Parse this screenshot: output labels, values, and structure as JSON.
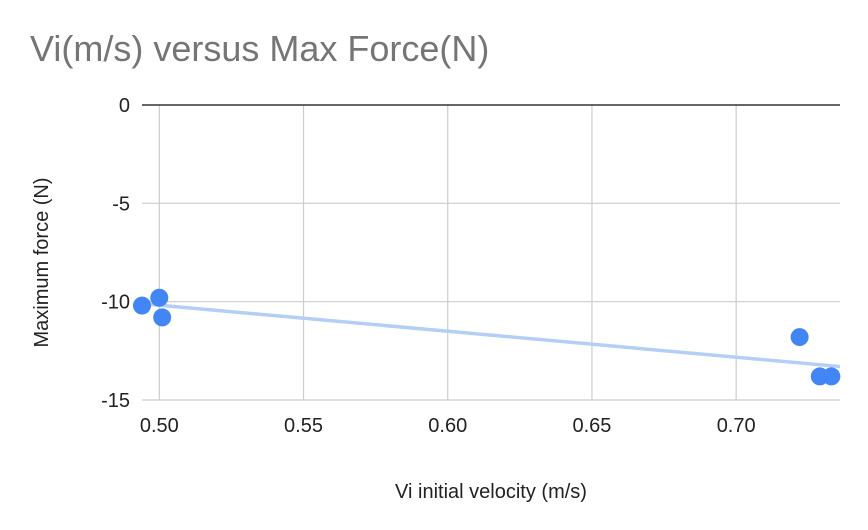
{
  "chart_data": {
    "type": "scatter",
    "title": "Vi(m/s) versus Max Force(N)",
    "xlabel": "Vi initial velocity (m/s)",
    "ylabel": "Maximum force (N)",
    "xlim": [
      0.494,
      0.736
    ],
    "ylim": [
      -15,
      0
    ],
    "x_ticks": [
      0.5,
      0.55,
      0.6,
      0.65,
      0.7
    ],
    "x_tick_labels": [
      "0.50",
      "0.55",
      "0.60",
      "0.65",
      "0.70"
    ],
    "y_ticks": [
      0,
      -5,
      -10,
      -15
    ],
    "y_tick_labels": [
      "0",
      "-5",
      "-10",
      "-15"
    ],
    "grid": true,
    "series": [
      {
        "color": "#4285f4",
        "points": [
          {
            "x": 0.494,
            "y": -10.2
          },
          {
            "x": 0.5,
            "y": -9.8
          },
          {
            "x": 0.501,
            "y": -10.8
          },
          {
            "x": 0.722,
            "y": -11.8
          },
          {
            "x": 0.729,
            "y": -13.8
          },
          {
            "x": 0.733,
            "y": -13.8
          }
        ]
      }
    ],
    "trendline": {
      "type": "linear",
      "color": "#b4cef6",
      "points": [
        {
          "x": 0.494,
          "y": -10.1
        },
        {
          "x": 0.736,
          "y": -13.3
        }
      ]
    }
  }
}
